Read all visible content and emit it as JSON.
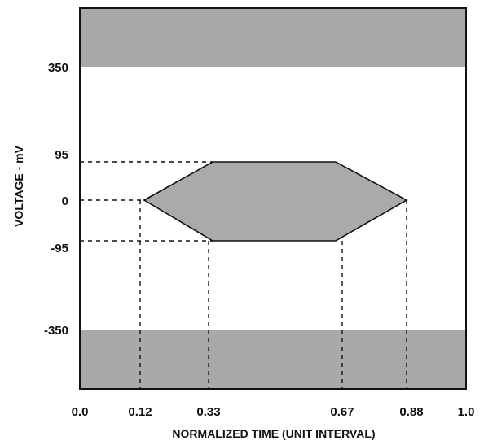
{
  "chart_data": {
    "type": "eye-diagram-mask",
    "xlabel": "NORMALIZED TIME (UNIT INTERVAL)",
    "ylabel": "VOLTAGE - mV",
    "xlim": [
      0.0,
      1.0
    ],
    "ylim": [
      -350,
      350
    ],
    "x_ticks": [
      "0.0",
      "0.12",
      "0.33",
      "0.67",
      "0.88",
      "1.0"
    ],
    "y_ticks": [
      "350",
      "95",
      "0",
      "-95",
      "-350"
    ],
    "mask_polygon": [
      [
        0.12,
        0
      ],
      [
        0.33,
        95
      ],
      [
        0.67,
        95
      ],
      [
        0.88,
        0
      ],
      [
        0.67,
        -95
      ],
      [
        0.33,
        -95
      ]
    ],
    "upper_forbidden_region": "above 350 mV",
    "lower_forbidden_region": "below -350 mV",
    "grid": false,
    "colors": {
      "mask_fill": "#aaaaaa",
      "forbidden_fill": "#a9a9a9",
      "line": "#111111",
      "background": "#ffffff"
    }
  }
}
